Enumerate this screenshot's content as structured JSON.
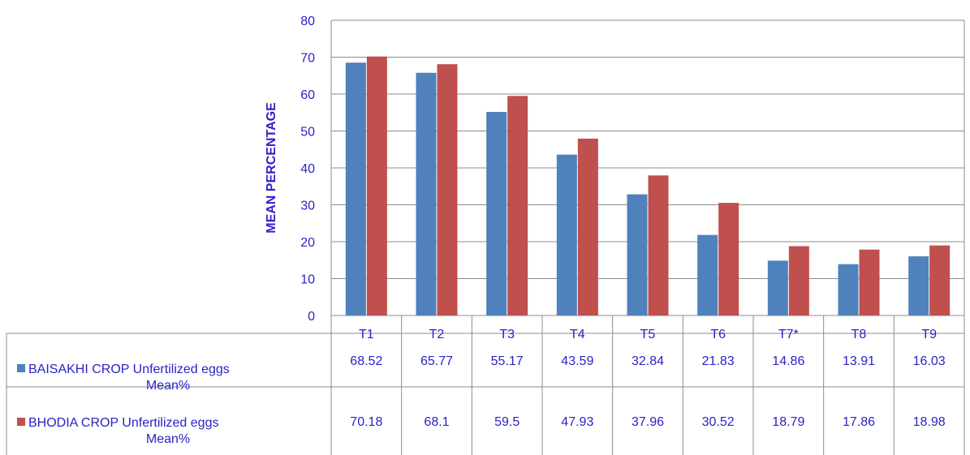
{
  "chart_data": {
    "type": "bar",
    "title": "",
    "xlabel": "",
    "ylabel": "MEAN PERCENTAGE",
    "ylim": [
      0,
      80
    ],
    "yticks": [
      0,
      10,
      20,
      30,
      40,
      50,
      60,
      70,
      80
    ],
    "grid": true,
    "legend": "data-table",
    "categories": [
      "T1",
      "T2",
      "T3",
      "T4",
      "T5",
      "T6",
      "T7*",
      "T8",
      "T9"
    ],
    "series": [
      {
        "name_line1": "BAISAKHI CROP Unfertilized eggs",
        "name_line2": "Mean%",
        "color": "#4f81bd",
        "values": [
          68.52,
          65.77,
          55.17,
          43.59,
          32.84,
          21.83,
          14.86,
          13.91,
          16.03
        ]
      },
      {
        "name_line1": "BHODIA CROP Unfertilized eggs",
        "name_line2": "Mean%",
        "color": "#c0504d",
        "values": [
          70.18,
          68.1,
          59.5,
          47.93,
          37.96,
          30.52,
          18.79,
          17.86,
          18.98
        ]
      }
    ],
    "table_labels": [
      [
        "68.52",
        "65.77",
        "55.17",
        "43.59",
        "32.84",
        "21.83",
        "14.86",
        "13.91",
        "16.03"
      ],
      [
        "70.18",
        "68.1",
        "59.5",
        "47.93",
        "37.96",
        "30.52",
        "18.79",
        "17.86",
        "18.98"
      ]
    ]
  }
}
